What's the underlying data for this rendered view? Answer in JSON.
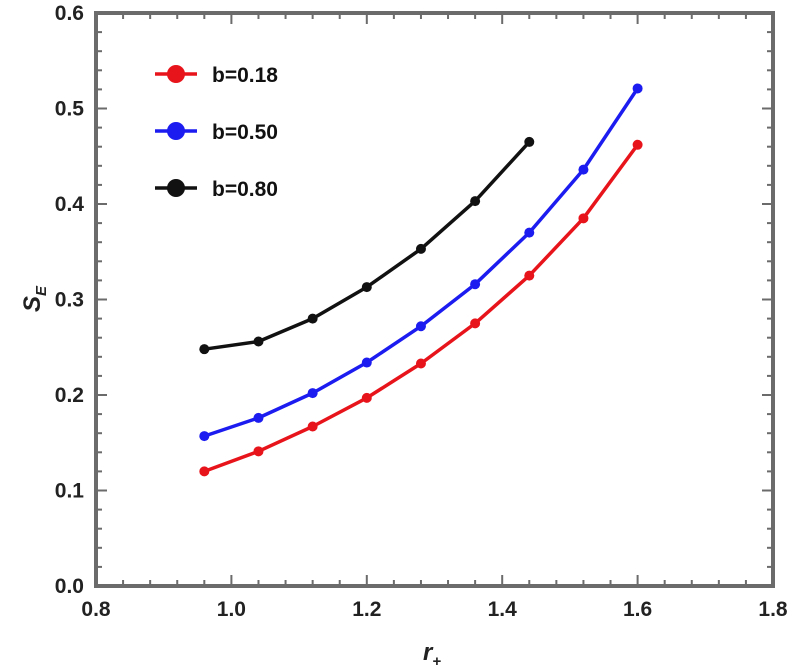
{
  "chart_data": {
    "type": "line",
    "title": "",
    "xlabel": "r",
    "xlabel_sub": "+",
    "ylabel": "S",
    "ylabel_sub": "E",
    "xlim": [
      0.8,
      1.8
    ],
    "ylim": [
      0.0,
      0.6
    ],
    "xticks": [
      "0.8",
      "1.0",
      "1.2",
      "1.4",
      "1.6",
      "1.8"
    ],
    "yticks": [
      "0.0",
      "0.1",
      "0.2",
      "0.3",
      "0.4",
      "0.5",
      "0.6"
    ],
    "grid": false,
    "legend_position": "top-left",
    "series": [
      {
        "name": "b=0.18",
        "color": "#e8141b",
        "x": [
          0.96,
          1.04,
          1.12,
          1.2,
          1.28,
          1.36,
          1.44,
          1.52,
          1.6
        ],
        "values": [
          0.12,
          0.141,
          0.167,
          0.197,
          0.233,
          0.275,
          0.325,
          0.385,
          0.462
        ]
      },
      {
        "name": "b=0.50",
        "color": "#1c1cf0",
        "x": [
          0.96,
          1.04,
          1.12,
          1.2,
          1.28,
          1.36,
          1.44,
          1.52,
          1.6
        ],
        "values": [
          0.157,
          0.176,
          0.202,
          0.234,
          0.272,
          0.316,
          0.37,
          0.436,
          0.521
        ]
      },
      {
        "name": "b=0.80",
        "color": "#111111",
        "x": [
          0.96,
          1.04,
          1.12,
          1.2,
          1.28,
          1.36,
          1.44
        ],
        "values": [
          0.248,
          0.256,
          0.28,
          0.313,
          0.353,
          0.403,
          0.465
        ]
      }
    ]
  }
}
